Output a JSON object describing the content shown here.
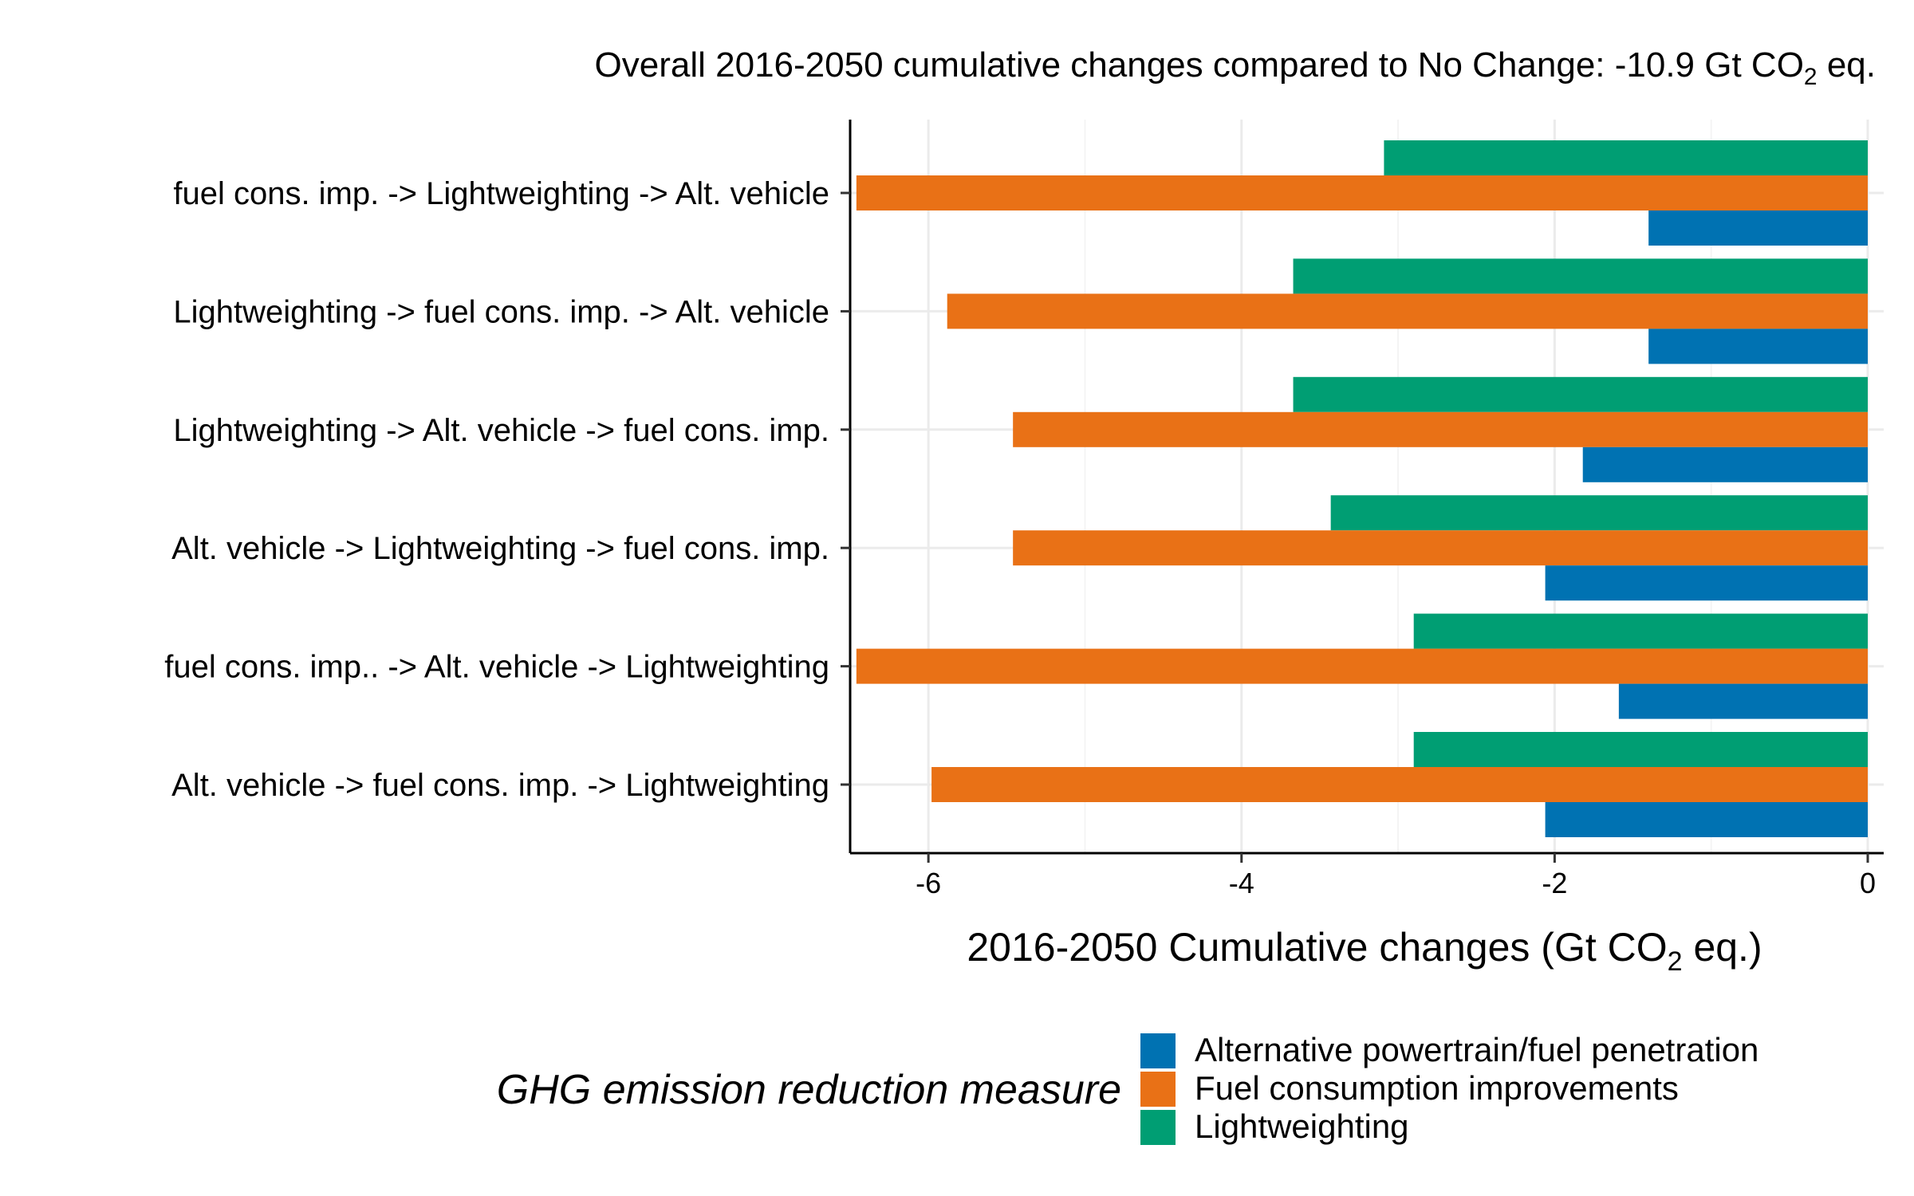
{
  "chart_data": {
    "type": "bar",
    "orientation": "horizontal",
    "title": {
      "prefix": "Overall 2016-2050 cumulative changes compared to No Change: -10.9 Gt CO",
      "sub": "2",
      "suffix": " eq."
    },
    "xlabel": {
      "prefix": "2016-2050 Cumulative changes (Gt CO",
      "sub": "2",
      "suffix": " eq.)"
    },
    "ylabel": "",
    "xlim": [
      -6.5,
      0
    ],
    "xticks": [
      -6,
      -4,
      -2,
      0
    ],
    "xtick_labels": [
      "-6",
      "-4",
      "-2",
      "0"
    ],
    "grid": true,
    "categories": [
      "fuel cons. imp. -> Lightweighting -> Alt. vehicle",
      "Lightweighting -> fuel cons. imp. -> Alt. vehicle",
      "Lightweighting -> Alt. vehicle -> fuel cons. imp.",
      "Alt. vehicle -> Lightweighting -> fuel cons. imp.",
      "fuel cons. imp.. -> Alt. vehicle -> Lightweighting",
      "Alt. vehicle -> fuel cons. imp. -> Lightweighting"
    ],
    "series": [
      {
        "name": "Alternative powertrain/fuel penetration",
        "color": "#0072B2",
        "values": [
          -1.4,
          -1.4,
          -1.82,
          -2.06,
          -1.59,
          -2.06
        ]
      },
      {
        "name": "Fuel consumption improvements",
        "color": "#E97116",
        "values": [
          -6.46,
          -5.88,
          -5.46,
          -5.46,
          -6.46,
          -5.98
        ]
      },
      {
        "name": "Lightweighting",
        "color": "#009E73",
        "values": [
          -3.09,
          -3.67,
          -3.67,
          -3.43,
          -2.9,
          -2.9
        ]
      }
    ],
    "legend": {
      "title": "GHG emission reduction measure",
      "placement": "bottom"
    }
  }
}
